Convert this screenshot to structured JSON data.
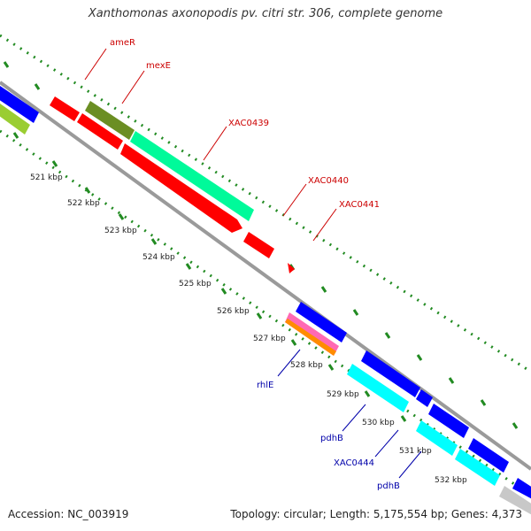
{
  "title": "Xanthomonas axonopodis pv. citri str. 306, complete genome",
  "footer": {
    "accession": "Accession: NC_003919",
    "topology": "Topology: circular; Length: 5,175,554 bp; Genes: 4,373"
  },
  "colors": {
    "backbone": "#8c8c8c",
    "tick": "#228b22",
    "forward_label": "#cc0000",
    "reverse_label": "#0000aa",
    "red": "#ff0000",
    "olive": "#6b8e23",
    "aqua": "#00fa9a",
    "blue": "#0000ff",
    "cyan": "#00ffff",
    "lime": "#9acd32",
    "magenta": "#ff1493",
    "gray": "#c8c8c8"
  },
  "ticks": [
    "521 kbp",
    "522 kbp",
    "523 kbp",
    "524 kbp",
    "525 kbp",
    "526 kbp",
    "527 kbp",
    "528 kbp",
    "529 kbp",
    "530 kbp",
    "531 kbp",
    "532 kbp"
  ],
  "forward_labels": [
    "ameR",
    "mexE",
    "XAC0439",
    "XAC0440",
    "XAC0441"
  ],
  "reverse_labels": [
    "rhlE",
    "pdhB",
    "XAC0444",
    "pdhB"
  ]
}
